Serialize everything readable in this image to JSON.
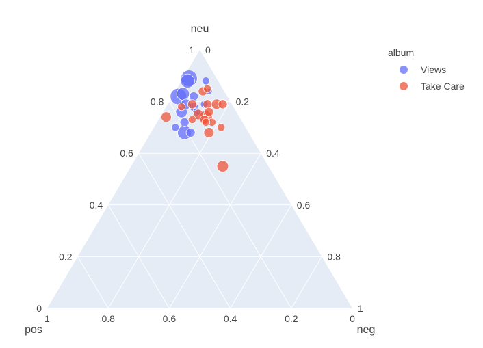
{
  "chart_data": {
    "type": "ternary-scatter",
    "axes": {
      "a": {
        "title": "neu",
        "ticks": [
          "0",
          "0.2",
          "0.4",
          "0.6",
          "0.8",
          "1"
        ]
      },
      "b": {
        "title": "pos",
        "ticks": [
          "0",
          "0.2",
          "0.4",
          "0.6",
          "0.8",
          "1"
        ]
      },
      "c": {
        "title": "neg",
        "ticks": [
          "0",
          "0.2",
          "0.4",
          "0.6",
          "0.8",
          "1"
        ]
      }
    },
    "grid": true,
    "legend": {
      "title": "album",
      "placement": "top-right",
      "items": [
        {
          "name": "Views",
          "color": "#636efa"
        },
        {
          "name": "Take Care",
          "color": "#ef553b"
        }
      ]
    },
    "series": [
      {
        "name": "Views",
        "color": "#636efa",
        "points": [
          {
            "neu": 0.89,
            "pos": 0.09,
            "neg": 0.02,
            "size": 1.0
          },
          {
            "neu": 0.88,
            "pos": 0.1,
            "neg": 0.02,
            "size": 0.8
          },
          {
            "neu": 0.82,
            "pos": 0.16,
            "neg": 0.02,
            "size": 1.0
          },
          {
            "neu": 0.83,
            "pos": 0.14,
            "neg": 0.03,
            "size": 0.7
          },
          {
            "neu": 0.76,
            "pos": 0.18,
            "neg": 0.06,
            "size": 0.6
          },
          {
            "neu": 0.68,
            "pos": 0.21,
            "neg": 0.11,
            "size": 0.8
          },
          {
            "neu": 0.79,
            "pos": 0.15,
            "neg": 0.06,
            "size": 0.5
          },
          {
            "neu": 0.78,
            "pos": 0.13,
            "neg": 0.09,
            "size": 0.4
          },
          {
            "neu": 0.82,
            "pos": 0.11,
            "neg": 0.07,
            "size": 0.4
          },
          {
            "neu": 0.76,
            "pos": 0.13,
            "neg": 0.11,
            "size": 0.3
          },
          {
            "neu": 0.72,
            "pos": 0.19,
            "neg": 0.09,
            "size": 0.4
          },
          {
            "neu": 0.68,
            "pos": 0.19,
            "neg": 0.13,
            "size": 0.4
          },
          {
            "neu": 0.88,
            "pos": 0.04,
            "neg": 0.08,
            "size": 0.3
          },
          {
            "neu": 0.84,
            "pos": 0.05,
            "neg": 0.11,
            "size": 0.2
          },
          {
            "neu": 0.7,
            "pos": 0.23,
            "neg": 0.07,
            "size": 0.3
          },
          {
            "neu": 0.79,
            "pos": 0.09,
            "neg": 0.12,
            "size": 0.3
          }
        ]
      },
      {
        "name": "Take Care",
        "color": "#ef553b",
        "points": [
          {
            "neu": 0.55,
            "pos": 0.15,
            "neg": 0.3,
            "size": 0.6
          },
          {
            "neu": 0.74,
            "pos": 0.11,
            "neg": 0.15,
            "size": 0.7
          },
          {
            "neu": 0.75,
            "pos": 0.13,
            "neg": 0.12,
            "size": 0.5
          },
          {
            "neu": 0.73,
            "pos": 0.12,
            "neg": 0.15,
            "size": 0.4
          },
          {
            "neu": 0.79,
            "pos": 0.08,
            "neg": 0.13,
            "size": 0.4
          },
          {
            "neu": 0.79,
            "pos": 0.13,
            "neg": 0.08,
            "size": 0.4
          },
          {
            "neu": 0.79,
            "pos": 0.05,
            "neg": 0.16,
            "size": 0.5
          },
          {
            "neu": 0.79,
            "pos": 0.03,
            "neg": 0.18,
            "size": 0.4
          },
          {
            "neu": 0.84,
            "pos": 0.07,
            "neg": 0.09,
            "size": 0.4
          },
          {
            "neu": 0.85,
            "pos": 0.05,
            "neg": 0.1,
            "size": 0.3
          },
          {
            "neu": 0.74,
            "pos": 0.24,
            "neg": 0.02,
            "size": 0.5
          },
          {
            "neu": 0.78,
            "pos": 0.17,
            "neg": 0.05,
            "size": 0.3
          },
          {
            "neu": 0.72,
            "pos": 0.1,
            "neg": 0.18,
            "size": 0.3
          },
          {
            "neu": 0.68,
            "pos": 0.13,
            "neg": 0.19,
            "size": 0.5
          },
          {
            "neu": 0.7,
            "pos": 0.08,
            "neg": 0.22,
            "size": 0.3
          },
          {
            "neu": 0.76,
            "pos": 0.09,
            "neg": 0.15,
            "size": 0.4
          },
          {
            "neu": 0.72,
            "pos": 0.12,
            "neg": 0.16,
            "size": 0.3
          },
          {
            "neu": 0.73,
            "pos": 0.16,
            "neg": 0.11,
            "size": 0.3
          }
        ]
      }
    ]
  }
}
